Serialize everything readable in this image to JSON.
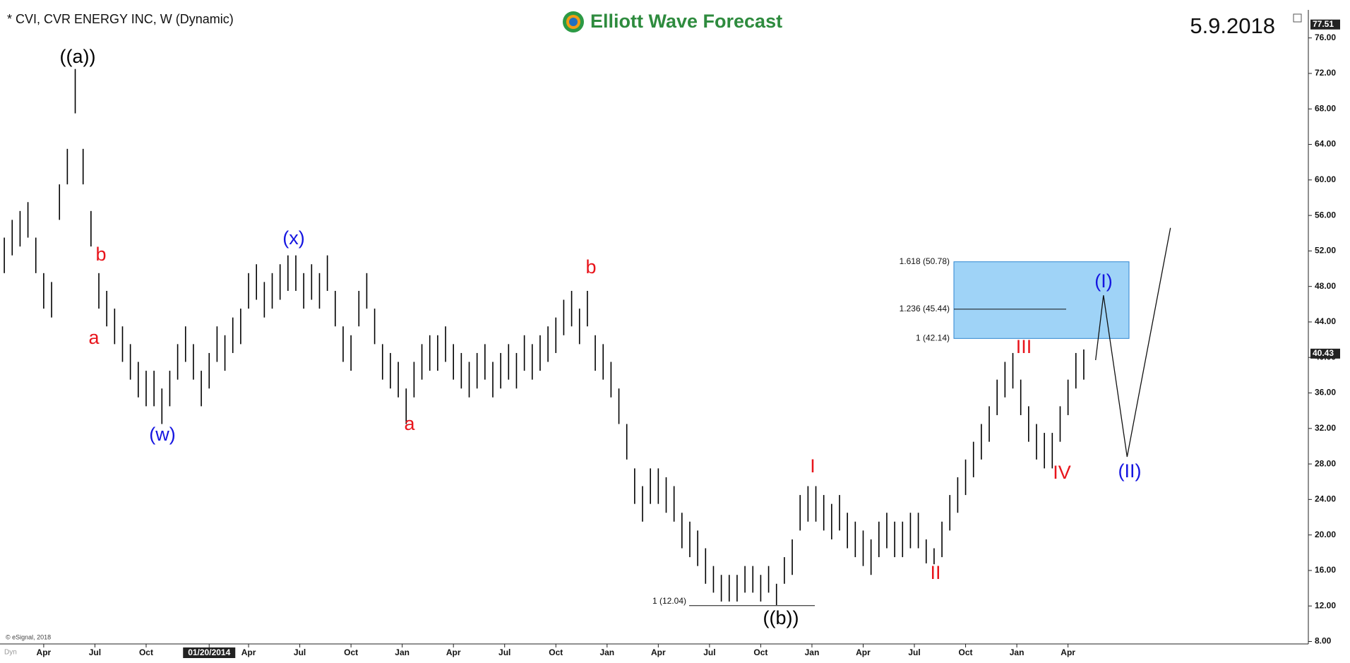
{
  "header": {
    "title": "* CVI, CVR ENERGY INC, W (Dynamic)",
    "brand": "Elliott Wave Forecast",
    "date": "5.9.2018",
    "copyright": "© eSignal, 2018",
    "corner": "Dyn"
  },
  "chart_data": {
    "type": "ohlc",
    "color": "#000000",
    "x": [
      0,
      2,
      4,
      6,
      8,
      10,
      12,
      14,
      16,
      18,
      20,
      22,
      24,
      26,
      28,
      30,
      32,
      34,
      36,
      38,
      40,
      42,
      44,
      46,
      48,
      50,
      52,
      54,
      56,
      58,
      60,
      62,
      64,
      66,
      68,
      70,
      72,
      74,
      76,
      78,
      80,
      82,
      84,
      86,
      88,
      90,
      92,
      94,
      96,
      98,
      100,
      102,
      104,
      106,
      108,
      110,
      112,
      114,
      116,
      118,
      120,
      122,
      124,
      126,
      128,
      130,
      132,
      134,
      136,
      138,
      140,
      142,
      144,
      146,
      148,
      150,
      152,
      154,
      156,
      158,
      160,
      162,
      164,
      166,
      168,
      170,
      172,
      174,
      176,
      178,
      180,
      182,
      184,
      186,
      188,
      190,
      192,
      194,
      196,
      198,
      200,
      202,
      204,
      206,
      208,
      210,
      212,
      214,
      216,
      218,
      220,
      222,
      224,
      226,
      228,
      230,
      232,
      234,
      236,
      238,
      240,
      242,
      244,
      246,
      248,
      250,
      252,
      254,
      256,
      258,
      260,
      262,
      264,
      266,
      268,
      270,
      272,
      274
    ],
    "high": [
      53.5,
      55.5,
      56.5,
      57.5,
      53.5,
      49.5,
      48.5,
      59.5,
      63.5,
      72.5,
      63.5,
      56.5,
      49.5,
      47.5,
      45.5,
      43.5,
      41.5,
      39.5,
      38.5,
      38.5,
      36.5,
      38.5,
      41.5,
      43.5,
      41.5,
      38.5,
      40.5,
      43.5,
      42.5,
      44.5,
      45.5,
      49.5,
      50.5,
      48.5,
      49.5,
      50.5,
      51.5,
      51.5,
      49.5,
      50.5,
      49.5,
      51.5,
      47.5,
      43.5,
      42.5,
      47.5,
      49.5,
      45.5,
      41.5,
      40.5,
      39.5,
      36.5,
      39.5,
      41.5,
      42.5,
      42.5,
      43.5,
      41.5,
      40.5,
      39.5,
      40.5,
      41.5,
      39.5,
      40.5,
      41.5,
      40.5,
      42.5,
      41.5,
      42.5,
      43.5,
      44.5,
      46.5,
      47.5,
      45.5,
      47.5,
      42.5,
      41.5,
      39.5,
      36.5,
      32.5,
      27.5,
      25.5,
      27.5,
      27.5,
      26.5,
      25.5,
      22.5,
      21.5,
      20.5,
      18.5,
      16.5,
      15.5,
      15.5,
      15.5,
      16.5,
      16.5,
      15.5,
      16.5,
      14.5,
      17.5,
      19.5,
      24.5,
      25.5,
      25.5,
      24.5,
      23.5,
      24.5,
      22.5,
      21.5,
      20.5,
      19.5,
      21.5,
      22.5,
      21.5,
      21.5,
      22.5,
      22.5,
      19.5,
      18.5,
      21.5,
      24.5,
      26.5,
      28.5,
      30.5,
      32.5,
      34.5,
      37.5,
      39.5,
      40.5,
      37.5,
      34.5,
      32.5,
      31.5,
      31.5,
      34.5,
      37.5,
      40.5,
      40.9
    ],
    "low": [
      49.5,
      51.5,
      52.5,
      53.5,
      49.5,
      45.5,
      44.5,
      55.5,
      59.5,
      67.5,
      59.5,
      52.5,
      45.5,
      43.5,
      41.5,
      39.5,
      37.5,
      35.5,
      34.5,
      34.5,
      32.5,
      34.5,
      37.5,
      39.5,
      37.5,
      34.5,
      36.5,
      39.5,
      38.5,
      40.5,
      41.5,
      45.5,
      46.5,
      44.5,
      45.5,
      46.5,
      47.5,
      47.5,
      45.5,
      46.5,
      45.5,
      47.5,
      43.5,
      39.5,
      38.5,
      43.5,
      45.5,
      41.5,
      37.5,
      36.5,
      35.5,
      32.5,
      35.5,
      37.5,
      38.5,
      38.5,
      39.5,
      37.5,
      36.5,
      35.5,
      36.5,
      37.5,
      35.5,
      36.5,
      37.5,
      36.5,
      38.5,
      37.5,
      38.5,
      39.5,
      40.5,
      42.5,
      43.5,
      41.5,
      43.5,
      38.5,
      37.5,
      35.5,
      32.5,
      28.5,
      23.5,
      21.5,
      23.5,
      23.5,
      22.5,
      21.5,
      18.5,
      17.5,
      16.5,
      14.5,
      13.5,
      12.5,
      12.5,
      12.5,
      13.5,
      13.5,
      12.5,
      13.5,
      12.1,
      14.5,
      15.5,
      20.5,
      21.5,
      21.5,
      20.5,
      19.5,
      20.5,
      18.5,
      17.5,
      16.5,
      15.5,
      17.5,
      18.5,
      17.5,
      17.5,
      18.5,
      18.5,
      16.8,
      16.7,
      17.5,
      20.5,
      22.5,
      24.5,
      26.5,
      28.5,
      30.5,
      33.5,
      35.5,
      36.5,
      33.5,
      30.5,
      28.5,
      27.5,
      27.5,
      30.5,
      33.5,
      36.5,
      37.5
    ],
    "xlim": [
      0,
      331
    ],
    "xticks": [
      {
        "value": 10,
        "label": "Apr"
      },
      {
        "value": 23,
        "label": "Jul"
      },
      {
        "value": 36,
        "label": "Oct"
      },
      {
        "value": 52,
        "label": "01/20/2014"
      },
      {
        "value": 62,
        "label": "Apr"
      },
      {
        "value": 75,
        "label": "Jul"
      },
      {
        "value": 88,
        "label": "Oct"
      },
      {
        "value": 101,
        "label": "Jan"
      },
      {
        "value": 114,
        "label": "Apr"
      },
      {
        "value": 127,
        "label": "Jul"
      },
      {
        "value": 140,
        "label": "Oct"
      },
      {
        "value": 153,
        "label": "Jan"
      },
      {
        "value": 166,
        "label": "Apr"
      },
      {
        "value": 179,
        "label": "Jul"
      },
      {
        "value": 192,
        "label": "Oct"
      },
      {
        "value": 205,
        "label": "Jan"
      },
      {
        "value": 218,
        "label": "Apr"
      },
      {
        "value": 231,
        "label": "Jul"
      },
      {
        "value": 244,
        "label": "Oct"
      },
      {
        "value": 257,
        "label": "Jan"
      },
      {
        "value": 270,
        "label": "Apr"
      }
    ],
    "ylim": [
      8,
      76
    ],
    "yticks": [
      {
        "value": 8,
        "label": "8.00"
      },
      {
        "value": 12,
        "label": "12.00"
      },
      {
        "value": 16,
        "label": "16.00"
      },
      {
        "value": 20,
        "label": "20.00"
      },
      {
        "value": 24,
        "label": "24.00"
      },
      {
        "value": 28,
        "label": "28.00"
      },
      {
        "value": 32,
        "label": "32.00"
      },
      {
        "value": 36,
        "label": "36.00"
      },
      {
        "value": 40,
        "label": "40.00"
      },
      {
        "value": 44,
        "label": "44.00"
      },
      {
        "value": 48,
        "label": "48.00"
      },
      {
        "value": 52,
        "label": "52.00"
      },
      {
        "value": 56,
        "label": "56.00"
      },
      {
        "value": 60,
        "label": "60.00"
      },
      {
        "value": 64,
        "label": "64.00"
      },
      {
        "value": 68,
        "label": "68.00"
      },
      {
        "value": 72,
        "label": "72.00"
      },
      {
        "value": 76,
        "label": "76.00"
      }
    ],
    "last_price": 40.43,
    "top_price": 77.51,
    "fib_box": [
      {
        "value": 50.78,
        "label": "1.618 (50.78)"
      },
      {
        "value": 45.44,
        "label": "1.236 (45.44)"
      },
      {
        "value": 42.14,
        "label": "1 (42.14)"
      }
    ],
    "fib_low": {
      "value": 12.04,
      "label": "1 (12.04)"
    },
    "projection": {
      "x": [
        277,
        279,
        285,
        296
      ],
      "y": [
        39.7,
        47,
        28.8,
        54.6
      ]
    },
    "annotations": [
      {
        "text": "((a))",
        "color": "#000000"
      },
      {
        "text": "b",
        "color": "#e8141b"
      },
      {
        "text": "a",
        "color": "#e8141b"
      },
      {
        "text": "(w)",
        "color": "#1414e0"
      },
      {
        "text": "(x)",
        "color": "#1414e0"
      },
      {
        "text": "a",
        "color": "#e8141b"
      },
      {
        "text": "b",
        "color": "#e8141b"
      },
      {
        "text": "I",
        "color": "#e8141b"
      },
      {
        "text": "((b))",
        "color": "#000000"
      },
      {
        "text": "II",
        "color": "#e8141b"
      },
      {
        "text": "III",
        "color": "#e8141b"
      },
      {
        "text": "IV",
        "color": "#e8141b"
      },
      {
        "text": "(I)",
        "color": "#1414e0"
      },
      {
        "text": "(II)",
        "color": "#1414e0"
      }
    ]
  }
}
